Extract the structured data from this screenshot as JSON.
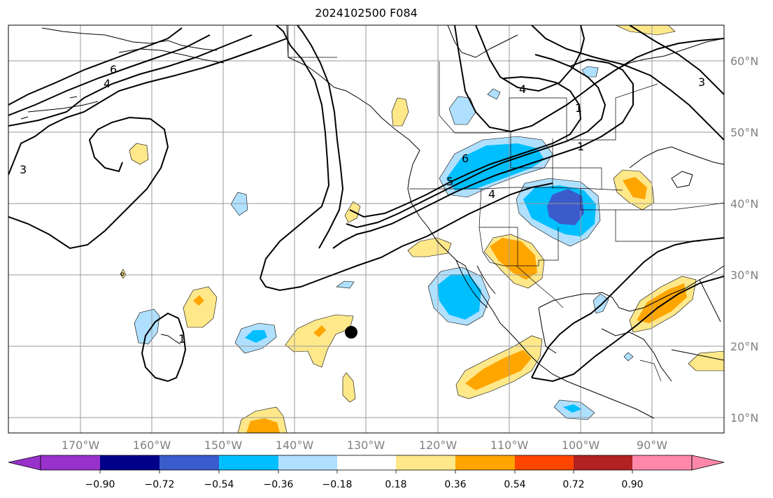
{
  "title": "2024102500 F084",
  "latitude_labels": [
    "60°N",
    "50°N",
    "40°N",
    "30°N",
    "20°N",
    "10°N"
  ],
  "longitude_labels": [
    "170°W",
    "160°W",
    "150°W",
    "140°W",
    "130°W",
    "120°W",
    "110°W",
    "100°W",
    "90°W"
  ],
  "colorbar": {
    "tick_labels": [
      "−0.90",
      "−0.72",
      "−0.54",
      "−0.36",
      "−0.18",
      "0.18",
      "0.36",
      "0.54",
      "0.72",
      "0.90"
    ],
    "colors": [
      "#9932cc",
      "#00008b",
      "#3a5bcc",
      "#00bfff",
      "#b0e0ff",
      "#ffffff",
      "#ffe88a",
      "#ffa500",
      "#ff4500",
      "#b22222",
      "#ff88aa"
    ]
  },
  "contour_labels": [
    "6",
    "4",
    "3",
    "4",
    "1",
    "6",
    "5",
    "4",
    "3",
    "1",
    "1"
  ],
  "marker": "black-dot",
  "colors": {
    "grid": "#9a9a9a",
    "coastline": "#000000",
    "contour": "#000000",
    "fill_yellow": "#ffe88a",
    "fill_orange": "#ffa500",
    "fill_red": "#ff4500",
    "fill_lightblue": "#b0e0ff",
    "fill_cyan": "#00bfff",
    "fill_blue": "#3a5bcc"
  }
}
